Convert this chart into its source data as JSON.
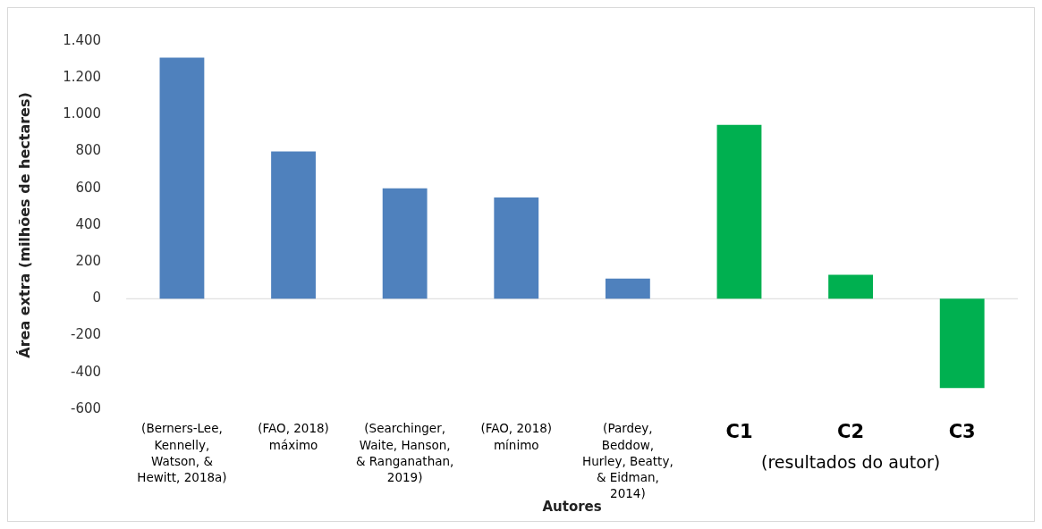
{
  "chart_data": {
    "type": "bar",
    "xlabel": "Autores",
    "ylabel": "Área extra (milhões de hectares)",
    "categories": [
      "(Berners-Lee,\nKennelly,\nWatson, &\nHewitt, 2018a)",
      "(FAO, 2018)\nmáximo",
      "(Searchinger,\nWaite, Hanson,\n& Ranganathan,\n2019)",
      "(FAO, 2018)\nmínimo",
      "(Pardey,\nBeddow,\nHurley, Beatty,\n& Eidman,\n2014)",
      "C1",
      "C2",
      "C3"
    ],
    "values": [
      1310,
      800,
      600,
      550,
      110,
      945,
      130,
      -485
    ],
    "colors": [
      "#4f81bd",
      "#4f81bd",
      "#4f81bd",
      "#4f81bd",
      "#4f81bd",
      "#00b050",
      "#00b050",
      "#00b050"
    ],
    "ylim": [
      -600,
      1400
    ],
    "yticks": [
      {
        "value": -600,
        "label": "-600"
      },
      {
        "value": -400,
        "label": "-400"
      },
      {
        "value": -200,
        "label": "-200"
      },
      0,
      200,
      400,
      600,
      800,
      {
        "value": 1000,
        "label": "1.000"
      },
      {
        "value": 1200,
        "label": "1.200"
      },
      {
        "value": 1400,
        "label": "1.400"
      }
    ],
    "annotations": [
      "(resultados do autor)"
    ],
    "ref_lines": [
      {
        "axis": "y",
        "value": 0,
        "color": "#d9d9d9"
      }
    ],
    "grid": false,
    "legend": false
  }
}
